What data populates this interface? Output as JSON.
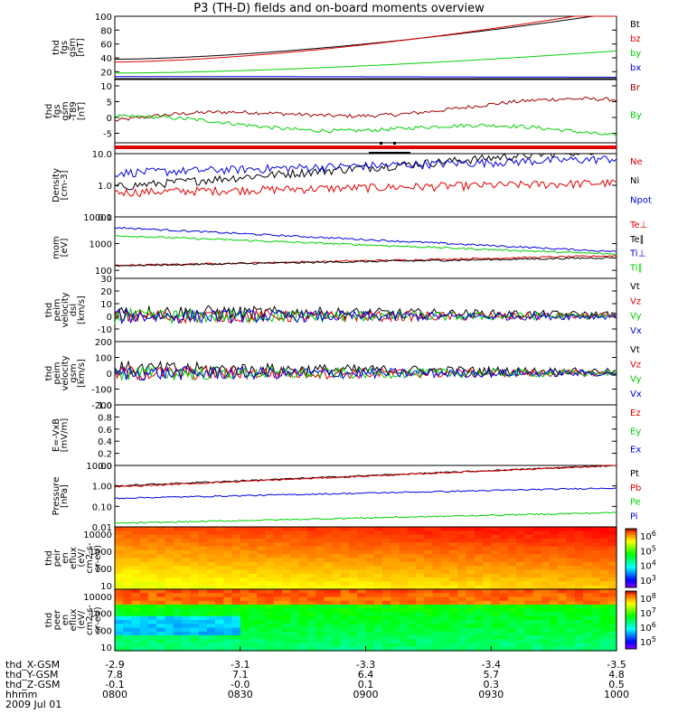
{
  "title": "P3 (TH-D) fields and on-board moments overview",
  "colors": {
    "black": "#000000",
    "red": "#e00000",
    "green": "#00d000",
    "blue": "#0000e0",
    "darkred": "#a00000"
  },
  "chart_data": [
    {
      "type": "line",
      "ylabel": [
        "thd",
        "fgs",
        "gsm",
        "[nT]"
      ],
      "ylim": [
        10,
        100
      ],
      "yticks": [
        "100",
        "80",
        "60",
        "40",
        "20"
      ],
      "series": [
        {
          "name": "Bt",
          "color": "#000000",
          "start": 38,
          "end": 105
        },
        {
          "name": "bz",
          "color": "#e00000",
          "start": 34,
          "end": 110
        },
        {
          "name": "by",
          "color": "#00d000",
          "start": 18,
          "end": 50
        },
        {
          "name": "bx",
          "color": "#0000e0",
          "start": 13,
          "end": 12
        }
      ]
    },
    {
      "type": "line",
      "ylabel": [
        "thd",
        "fgs",
        "gsm",
        "-T89",
        "[nT]"
      ],
      "ylim": [
        -8,
        12
      ],
      "yticks": [
        "10",
        "5",
        "0",
        "-5"
      ],
      "series": [
        {
          "name": "Br",
          "color": "#a00000",
          "start": -1,
          "end": 5
        },
        {
          "name": "By",
          "color": "#00d000",
          "start": -1,
          "end": -5
        }
      ]
    },
    {
      "type": "line",
      "ylabel": [
        "Density",
        "[cm-3]"
      ],
      "ylim": [
        0.1,
        10
      ],
      "log": true,
      "yticks": [
        "10.0",
        "1.0",
        "0.1"
      ],
      "series": [
        {
          "name": "Ne",
          "color": "#e00000",
          "start": 0.6,
          "end": 1.2
        },
        {
          "name": "Ni",
          "color": "#000000",
          "start": 0.9,
          "end": 15
        },
        {
          "name": "Npot",
          "color": "#0000e0",
          "start": 2.5,
          "end": 7
        }
      ]
    },
    {
      "type": "line",
      "ylabel": [
        "mom",
        "[eV]"
      ],
      "ylim": [
        50,
        10000
      ],
      "log": true,
      "yticks": [
        "10000",
        "1000",
        "100"
      ],
      "series": [
        {
          "name": "Te⊥",
          "color": "#e00000",
          "start": 150,
          "end": 350
        },
        {
          "name": "Te∥",
          "color": "#000000",
          "start": 150,
          "end": 300
        },
        {
          "name": "Ti⊥",
          "color": "#0000e0",
          "start": 4000,
          "end": 500
        },
        {
          "name": "Ti∥",
          "color": "#00d000",
          "start": 2000,
          "end": 400
        }
      ]
    },
    {
      "type": "line",
      "ylabel": [
        "thd",
        "peim",
        "velocity",
        "dsl",
        "[km/s]"
      ],
      "ylim": [
        -20,
        30
      ],
      "yticks": [
        "30",
        "20",
        "10",
        "0",
        "-10"
      ],
      "series": [
        {
          "name": "Vt",
          "color": "#000000"
        },
        {
          "name": "Vz",
          "color": "#e00000"
        },
        {
          "name": "Vy",
          "color": "#00d000"
        },
        {
          "name": "Vx",
          "color": "#0000e0"
        }
      ]
    },
    {
      "type": "line",
      "ylabel": [
        "thd",
        "peim",
        "velocity",
        "gsm",
        "[km/s]"
      ],
      "ylim": [
        -200,
        200
      ],
      "yticks": [
        "200",
        "100",
        "0",
        "-100",
        "-200"
      ],
      "series": [
        {
          "name": "Vt",
          "color": "#000000"
        },
        {
          "name": "Vz",
          "color": "#e00000"
        },
        {
          "name": "Vy",
          "color": "#00d000"
        },
        {
          "name": "Vx",
          "color": "#0000e0"
        }
      ]
    },
    {
      "type": "line",
      "ylabel": [
        "E=-VxB",
        "[mV/m]"
      ],
      "ylim": [
        0,
        1
      ],
      "yticks": [
        "1.0",
        "0.8",
        "0.6",
        "0.4",
        "0.2",
        "0.0"
      ],
      "series": [
        {
          "name": "Ez",
          "color": "#e00000"
        },
        {
          "name": "Ey",
          "color": "#00d000"
        },
        {
          "name": "Ex",
          "color": "#0000e0"
        }
      ]
    },
    {
      "type": "line",
      "ylabel": [
        "Pressure",
        "[nPa]"
      ],
      "ylim": [
        0.01,
        10
      ],
      "log": true,
      "yticks": [
        "10.00",
        "1.00",
        "0.10",
        "0.01"
      ],
      "series": [
        {
          "name": "Pt",
          "color": "#000000",
          "start": 1.0,
          "end": 10
        },
        {
          "name": "Pb",
          "color": "#e00000",
          "start": 0.9,
          "end": 10
        },
        {
          "name": "Pe",
          "color": "#00d000",
          "start": 0.015,
          "end": 0.05
        },
        {
          "name": "Pi",
          "color": "#0000e0",
          "start": 0.25,
          "end": 0.8
        }
      ]
    },
    {
      "type": "heatmap",
      "ylabel": [
        "thd",
        "peir",
        "en",
        "eflux",
        "(eV/",
        "cm2-s-",
        "sr-eV)"
      ],
      "yticks": [
        "10000",
        "1000",
        "100",
        "10"
      ],
      "colorbar": [
        "10^6",
        "10^5",
        "10^4",
        "10^3"
      ]
    },
    {
      "type": "heatmap",
      "ylabel": [
        "thd",
        "peer",
        "en",
        "eflux",
        "(eV/",
        "cm2-s-",
        "sr-eV)"
      ],
      "yticks": [
        "10000",
        "1000",
        "100",
        "10"
      ],
      "colorbar": [
        "10^8",
        "10^7",
        "10^6",
        "10^5"
      ]
    }
  ],
  "footer": {
    "rows": [
      {
        "label": "thd_X-GSM",
        "values": [
          "-2.9",
          "-3.1",
          "-3.3",
          "-3.4",
          "-3.5"
        ]
      },
      {
        "label": "thd_Y-GSM",
        "values": [
          "7.8",
          "7.1",
          "6.4",
          "5.7",
          "4.8"
        ]
      },
      {
        "label": "thd_Z-GSM",
        "values": [
          "-0.1",
          "-0.0",
          "0.1",
          "0.3",
          "0.5"
        ]
      },
      {
        "label": "hhmm",
        "values": [
          "0800",
          "0830",
          "0900",
          "0930",
          "1000"
        ]
      }
    ],
    "date": "2009 Jul 01"
  }
}
